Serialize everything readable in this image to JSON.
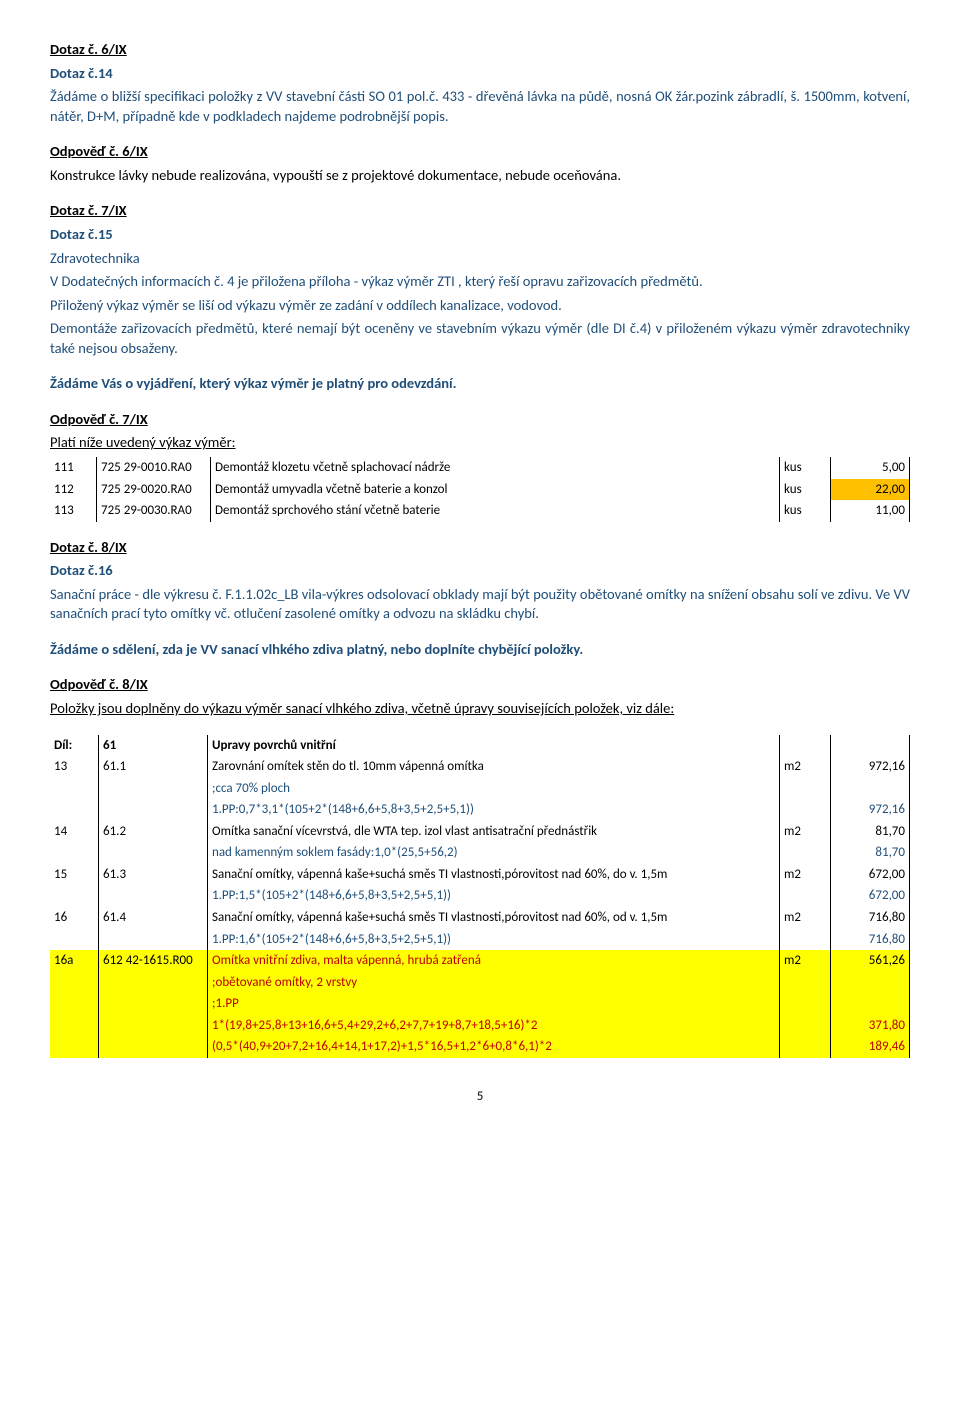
{
  "q6": {
    "title": "Dotaz č. 6/IX",
    "sub": "Dotaz č.14",
    "body1": "Žádáme o bližší specifikaci položky z VV stavební části SO 01 pol.č. 433 - dřevěná lávka na půdě, nosná OK žár.pozink zábradlí, š. 1500mm, kotvení, nátěr, D+M, případně kde v podkladech najdeme podrobnější popis.",
    "ans_title": "Odpověď č. 6/IX",
    "ans_body": "Konstrukce lávky nebude realizována, vypouští se z projektové dokumentace, nebude oceňována."
  },
  "q7": {
    "title": "Dotaz č. 7/IX",
    "sub": "Dotaz č.15",
    "zdrav": "Zdravotechnika",
    "body1": "V Dodatečných informacích č. 4 je přiložena příloha - výkaz výměr ZTI , který řeší opravu zařizovacích předmětů.",
    "body2": "Přiložený výkaz výměr se liší od výkazu výměr ze zadání v oddílech kanalizace, vodovod.",
    "body3": "Demontáže zařizovacích předmětů, které nemají být oceněny ve stavebním výkazu výměr (dle DI č.4) v přiloženém výkazu výměr zdravotechniky také nejsou obsaženy.",
    "ask": "Žádáme Vás o vyjádření, který výkaz výměr je platný pro odevzdání.",
    "ans_title": "Odpověď č. 7/IX",
    "ans_sub": "Platí níže uvedený výkaz výměr:"
  },
  "t1": {
    "rows": [
      {
        "n": "111",
        "code": "725 29-0010.RA0",
        "desc": "Demontáž klozetu včetně splachovací nádrže",
        "unit": "kus",
        "val": "5,00",
        "hl": ""
      },
      {
        "n": "112",
        "code": "725 29-0020.RA0",
        "desc": "Demontáž umyvadla včetně baterie a konzol",
        "unit": "kus",
        "val": "22,00",
        "hl": "hl-orange"
      },
      {
        "n": "113",
        "code": "725 29-0030.RA0",
        "desc": "Demontáž sprchového stání včetně baterie",
        "unit": "kus",
        "val": "11,00",
        "hl": ""
      }
    ]
  },
  "q8": {
    "title": "Dotaz č. 8/IX",
    "sub": "Dotaz č.16",
    "body": "Sanační práce - dle výkresu č. F.1.1.02c_LB vila-výkres odsolovací obklady mají být použity obětované omítky na snížení obsahu solí ve zdivu. Ve VV sanačních prací tyto omítky vč. otlučení zasolené omítky a odvozu na skládku chybí.",
    "ask": "Žádáme o sdělení, zda je VV sanací vlhkého zdiva platný, nebo doplníte chybějící položky.",
    "ans_title": "Odpověď č. 8/IX",
    "ans_sub": "Položky jsou doplněny do výkazu výměr sanací vlhkého zdiva, včetně úpravy souvisejících položek, viz dále:"
  },
  "t2": {
    "dil": {
      "a": "Díl:",
      "b": "61",
      "c": "Upravy povrchů vnitřní"
    },
    "rows": [
      {
        "type": "main",
        "n": "13",
        "code": "61.1",
        "desc": "Zarovnání omítek stěn do tl. 10mm vápenná omítka",
        "unit": "m2",
        "val": "972,16",
        "hl": ""
      },
      {
        "type": "sub",
        "desc": ";cca 70% ploch",
        "val": "",
        "color": "blue"
      },
      {
        "type": "sub",
        "desc": "1.PP:0,7*3,1*(105+2*(148+6,6+5,8+3,5+2,5+5,1))",
        "val": "972,16",
        "color": "blue"
      },
      {
        "type": "main",
        "n": "14",
        "code": "61.2",
        "desc": "Omítka sanační vícevrstvá, dle WTA tep. izol vlast antisatrační přednástřik",
        "unit": "m2",
        "val": "81,70",
        "hl": ""
      },
      {
        "type": "sub",
        "desc": "nad kamenným soklem fasády:1,0*(25,5+56,2)",
        "val": "81,70",
        "color": "blue"
      },
      {
        "type": "main",
        "n": "15",
        "code": "61.3",
        "desc": "Sanační omítky, vápenná kaše+suchá směs TI vlastnosti,pórovitost nad 60%, do v. 1,5m",
        "unit": "m2",
        "val": "672,00",
        "hl": ""
      },
      {
        "type": "sub",
        "desc": "1.PP:1,5*(105+2*(148+6,6+5,8+3,5+2,5+5,1))",
        "val": "672,00",
        "color": "blue"
      },
      {
        "type": "main",
        "n": "16",
        "code": "61.4",
        "desc": "Sanační omítky, vápenná kaše+suchá směs TI vlastnosti,pórovitost nad 60%, od v. 1,5m",
        "unit": "m2",
        "val": "716,80",
        "hl": ""
      },
      {
        "type": "sub",
        "desc": "1.PP:1,6*(105+2*(148+6,6+5,8+3,5+2,5+5,1))",
        "val": "716,80",
        "color": "blue"
      },
      {
        "type": "main",
        "n": "16a",
        "code": "612 42-1615.R00",
        "desc": "Omítka vnitřní zdiva, malta vápenná, hrubá zatřená",
        "unit": "m2",
        "val": "561,26",
        "hl": "hl-yellow",
        "color": "red"
      },
      {
        "type": "sub",
        "desc": ";obětované omítky, 2 vrstvy",
        "val": "",
        "color": "red",
        "hl": "hl-yellow"
      },
      {
        "type": "sub",
        "desc": ";1.PP",
        "val": "",
        "color": "red",
        "hl": "hl-yellow"
      },
      {
        "type": "sub",
        "desc": "1*(19,8+25,8+13+16,6+5,4+29,2+6,2+7,7+19+8,7+18,5+16)*2",
        "val": "371,80",
        "color": "red",
        "hl": "hl-yellow"
      },
      {
        "type": "sub",
        "desc": "(0,5*(40,9+20+7,2+16,4+14,1+17,2)+1,5*16,5+1,2*6+0,8*6,1)*2",
        "val": "189,46",
        "color": "red",
        "hl": "hl-yellow"
      }
    ]
  },
  "page": "5"
}
